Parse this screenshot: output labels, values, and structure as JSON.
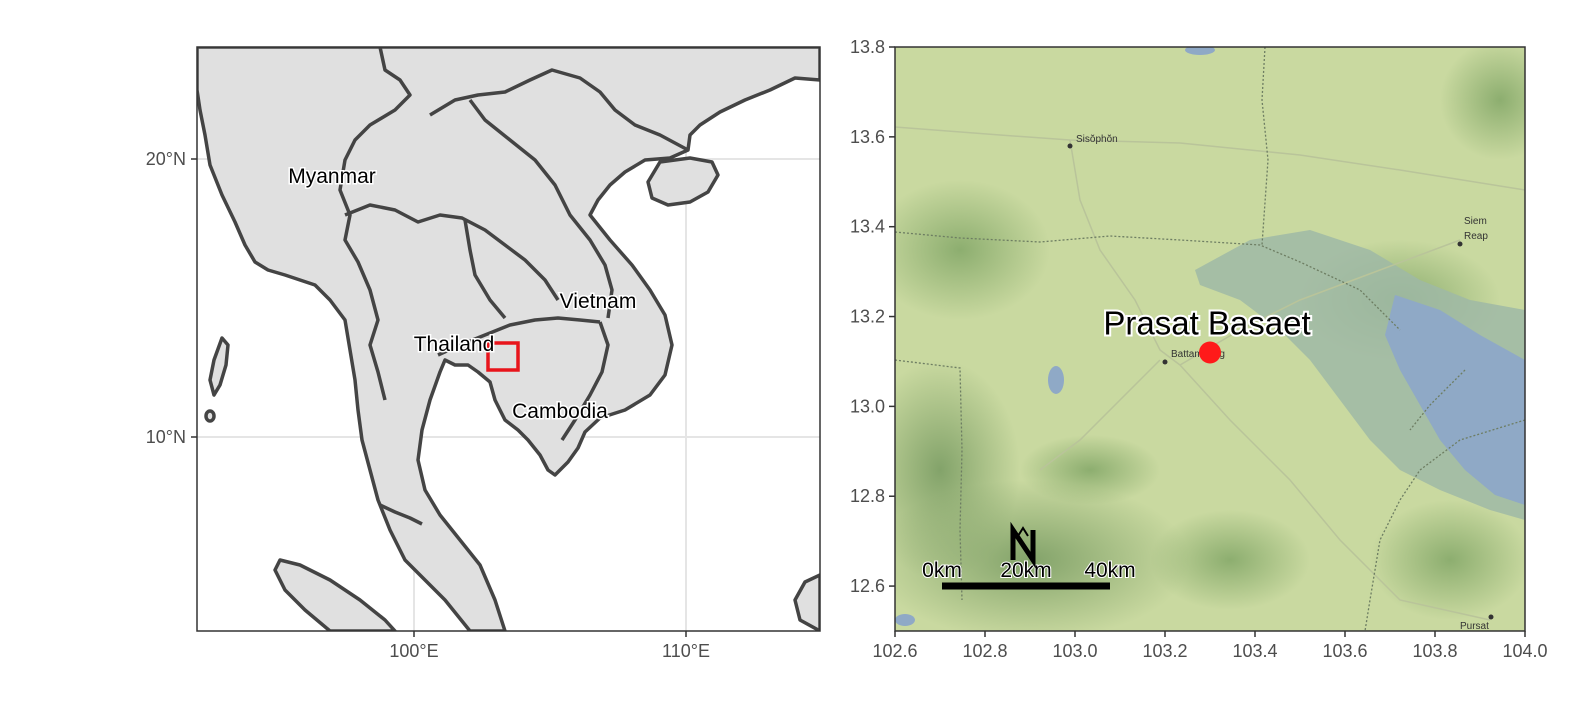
{
  "overview_map": {
    "x_ticks": [
      "100°E",
      "110°E"
    ],
    "y_ticks": [
      "20°N",
      "10°N"
    ],
    "countries": [
      "Myanmar",
      "Thailand",
      "Vietnam",
      "Cambodia"
    ],
    "study_area": {
      "lon": [
        102.6,
        104.0
      ],
      "lat": [
        12.5,
        13.8
      ]
    },
    "colors": {
      "land": "#e0e0e0",
      "border": "#444444",
      "box": "#e8141b",
      "grid": "#e5e5e5"
    }
  },
  "detail_map": {
    "x_ticks": [
      "102.6",
      "102.8",
      "103.0",
      "103.2",
      "103.4",
      "103.6",
      "103.8",
      "104.0"
    ],
    "y_ticks": [
      "13.8",
      "13.6",
      "13.4",
      "13.2",
      "13.0",
      "12.8",
      "12.6"
    ],
    "xlim": [
      102.6,
      104.0
    ],
    "ylim": [
      12.5,
      13.8
    ],
    "site": {
      "name": "Prasat Basaet",
      "lon": 103.3,
      "lat": 13.12,
      "color": "#ff1a1a"
    },
    "towns": [
      "Sisŏphŏn",
      "Siem",
      "Reap",
      "Battambang",
      "Pursat"
    ],
    "scale_bar": {
      "labels": [
        "0km",
        "20km",
        "40km"
      ],
      "distance_km": 40
    },
    "north_arrow": "N",
    "colors": {
      "land": "#c9d9a0",
      "hills": "#98b67a",
      "water": "#8fa9c6",
      "flood": "#9fb8a6"
    }
  }
}
